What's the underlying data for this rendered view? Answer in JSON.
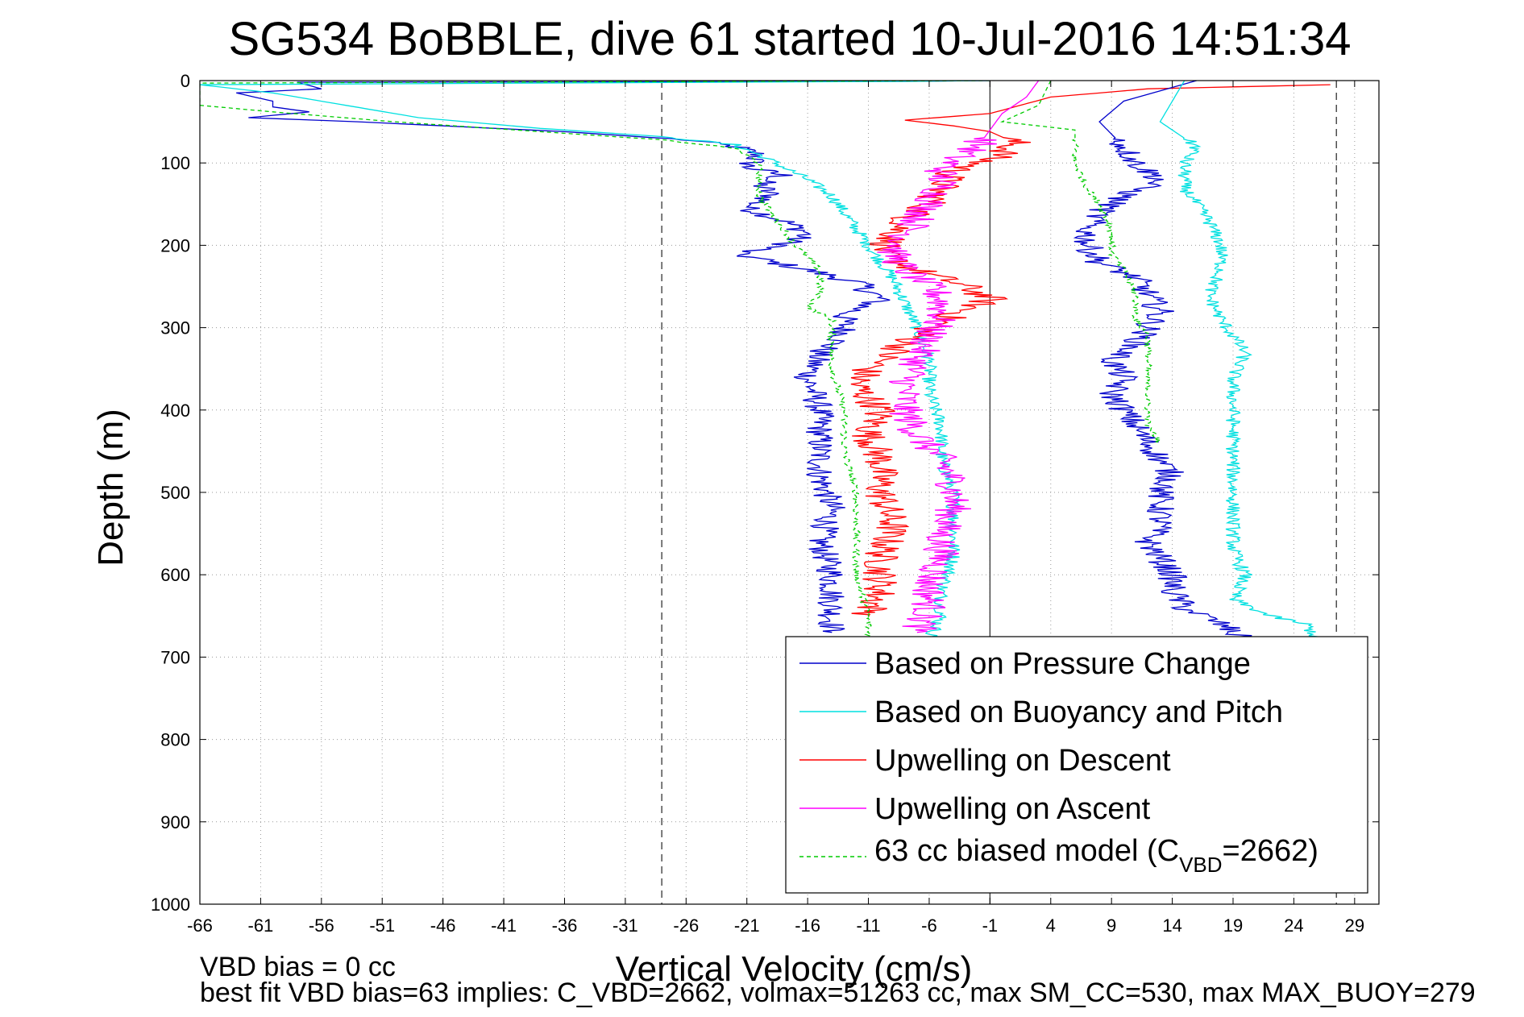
{
  "chart_data": {
    "type": "line",
    "title": "SG534 BoBBLE, dive 61 started 10-Jul-2016 14:51:34",
    "xlabel": "Vertical Velocity (cm/s)",
    "ylabel": "Depth (m)",
    "xlim": [
      -66,
      31
    ],
    "ylim": [
      0,
      1000
    ],
    "y_reversed": true,
    "grid": true,
    "legend_position": "bottom-right",
    "xticks": [
      "-66",
      "-61",
      "-56",
      "-51",
      "-46",
      "-41",
      "-36",
      "-31",
      "-26",
      "-21",
      "-16",
      "-11",
      "-6",
      "-1",
      "4",
      "9",
      "14",
      "19",
      "24",
      "29"
    ],
    "yticks": [
      "0",
      "100",
      "200",
      "300",
      "400",
      "500",
      "600",
      "700",
      "800",
      "900",
      "1000"
    ],
    "reference_lines": [
      {
        "x": -1,
        "style": "solid"
      },
      {
        "x": -28,
        "style": "dashed"
      },
      {
        "x": 27.5,
        "style": "dashed"
      }
    ],
    "series": [
      {
        "name": "Based on Pressure Change",
        "color": "#0000cc",
        "style": "solid",
        "noise": 1.2,
        "points": [
          [
            -1,
            0
          ],
          [
            -8,
            1
          ],
          [
            -58,
            2
          ],
          [
            -56,
            10
          ],
          [
            -63,
            15
          ],
          [
            -60,
            25
          ],
          [
            -60,
            32
          ],
          [
            -57,
            38
          ],
          [
            -62,
            45
          ],
          [
            -53,
            50
          ],
          [
            -36,
            62
          ],
          [
            -26,
            72
          ],
          [
            -22,
            80
          ],
          [
            -20,
            90
          ],
          [
            -21,
            105
          ],
          [
            -18,
            115
          ],
          [
            -20,
            125
          ],
          [
            -19,
            140
          ],
          [
            -21,
            155
          ],
          [
            -18,
            170
          ],
          [
            -16,
            185
          ],
          [
            -18,
            200
          ],
          [
            -22,
            210
          ],
          [
            -16,
            230
          ],
          [
            -12,
            245
          ],
          [
            -10,
            265
          ],
          [
            -13,
            285
          ],
          [
            -13,
            310
          ],
          [
            -15,
            330
          ],
          [
            -16,
            360
          ],
          [
            -15,
            400
          ],
          [
            -15,
            440
          ],
          [
            -15,
            480
          ],
          [
            -14,
            520
          ],
          [
            -15,
            560
          ],
          [
            -14,
            600
          ],
          [
            -14,
            640
          ],
          [
            -14,
            670
          ]
        ]
      },
      {
        "name": "Based on Buoyancy and Pitch",
        "color": "#00e0e0",
        "style": "solid",
        "noise": 0.6,
        "points": [
          [
            -1,
            0
          ],
          [
            -8,
            1
          ],
          [
            -66,
            5
          ],
          [
            -60,
            15
          ],
          [
            -54,
            30
          ],
          [
            -48,
            45
          ],
          [
            -38,
            58
          ],
          [
            -28,
            68
          ],
          [
            -22,
            78
          ],
          [
            -20,
            90
          ],
          [
            -18,
            105
          ],
          [
            -16,
            120
          ],
          [
            -14,
            140
          ],
          [
            -13,
            160
          ],
          [
            -12,
            180
          ],
          [
            -11,
            200
          ],
          [
            -10,
            220
          ],
          [
            -9,
            240
          ],
          [
            -8,
            270
          ],
          [
            -7,
            300
          ],
          [
            -6,
            340
          ],
          [
            -6,
            380
          ],
          [
            -5,
            420
          ],
          [
            -5,
            460
          ],
          [
            -4,
            500
          ],
          [
            -4,
            540
          ],
          [
            -4,
            580
          ],
          [
            -5,
            620
          ],
          [
            -5,
            650
          ],
          [
            -6,
            680
          ]
        ]
      },
      {
        "name": "Upwelling on Descent",
        "color": "#ff0000",
        "style": "solid",
        "noise": 1.5,
        "points": [
          [
            27,
            5
          ],
          [
            12,
            10
          ],
          [
            4,
            20
          ],
          [
            -1,
            40
          ],
          [
            -8,
            48
          ],
          [
            -4,
            55
          ],
          [
            -1,
            62
          ],
          [
            1,
            75
          ],
          [
            0,
            90
          ],
          [
            -4,
            110
          ],
          [
            -5,
            130
          ],
          [
            -6,
            150
          ],
          [
            -8,
            170
          ],
          [
            -9,
            190
          ],
          [
            -10,
            210
          ],
          [
            -7,
            230
          ],
          [
            -3,
            250
          ],
          [
            -1,
            265
          ],
          [
            -4,
            285
          ],
          [
            -7,
            310
          ],
          [
            -9,
            330
          ],
          [
            -11,
            350
          ],
          [
            -12,
            370
          ],
          [
            -10,
            400
          ],
          [
            -11,
            430
          ],
          [
            -10,
            460
          ],
          [
            -10,
            500
          ],
          [
            -9,
            540
          ],
          [
            -10,
            580
          ],
          [
            -10,
            620
          ],
          [
            -11,
            650
          ]
        ]
      },
      {
        "name": "Upwelling on Ascent",
        "color": "#ff00ff",
        "style": "solid",
        "noise": 1.5,
        "points": [
          [
            3,
            0
          ],
          [
            2,
            20
          ],
          [
            0,
            40
          ],
          [
            -1,
            60
          ],
          [
            -2,
            80
          ],
          [
            -4,
            95
          ],
          [
            -5,
            110
          ],
          [
            -5,
            130
          ],
          [
            -6,
            150
          ],
          [
            -7,
            170
          ],
          [
            -8,
            190
          ],
          [
            -9,
            210
          ],
          [
            -8,
            230
          ],
          [
            -6,
            250
          ],
          [
            -5,
            265
          ],
          [
            -5,
            285
          ],
          [
            -6,
            310
          ],
          [
            -7,
            340
          ],
          [
            -8,
            370
          ],
          [
            -8,
            400
          ],
          [
            -7,
            430
          ],
          [
            -5,
            460
          ],
          [
            -4,
            490
          ],
          [
            -4,
            520
          ],
          [
            -5,
            550
          ],
          [
            -5,
            580
          ],
          [
            -6,
            610
          ],
          [
            -6,
            640
          ],
          [
            -7,
            670
          ]
        ]
      },
      {
        "name": "63 cc biased model (C_VBD=2662)",
        "color": "#00cc00",
        "style": "dashed",
        "noise": 0.3,
        "points": [
          [
            -1,
            0
          ],
          [
            -66,
            3
          ],
          [
            -66,
            30
          ],
          [
            -60,
            38
          ],
          [
            -50,
            50
          ],
          [
            -38,
            62
          ],
          [
            -28,
            72
          ],
          [
            -22,
            82
          ],
          [
            -20,
            100
          ],
          [
            -20,
            120
          ],
          [
            -20,
            140
          ],
          [
            -19,
            160
          ],
          [
            -18,
            180
          ],
          [
            -17,
            200
          ],
          [
            -15,
            230
          ],
          [
            -15,
            260
          ],
          [
            -16,
            275
          ],
          [
            -14,
            290
          ],
          [
            -14,
            320
          ],
          [
            -14,
            350
          ],
          [
            -13,
            400
          ],
          [
            -13,
            450
          ],
          [
            -12,
            500
          ],
          [
            -12,
            550
          ],
          [
            -12,
            600
          ],
          [
            -11,
            650
          ],
          [
            -11,
            680
          ]
        ]
      },
      {
        "name": "",
        "color": "#0000cc",
        "style": "solid",
        "noise": 1.2,
        "points": [
          [
            16,
            0
          ],
          [
            10,
            25
          ],
          [
            8,
            50
          ],
          [
            10,
            80
          ],
          [
            11,
            100
          ],
          [
            13,
            120
          ],
          [
            10,
            140
          ],
          [
            8,
            160
          ],
          [
            7,
            180
          ],
          [
            7,
            200
          ],
          [
            8,
            220
          ],
          [
            11,
            240
          ],
          [
            12,
            260
          ],
          [
            13,
            280
          ],
          [
            12,
            300
          ],
          [
            11,
            320
          ],
          [
            9,
            340
          ],
          [
            10,
            360
          ],
          [
            9,
            380
          ],
          [
            10,
            400
          ],
          [
            11,
            420
          ],
          [
            12,
            440
          ],
          [
            13,
            460
          ],
          [
            14,
            480
          ],
          [
            13,
            500
          ],
          [
            13,
            520
          ],
          [
            13,
            540
          ],
          [
            12,
            560
          ],
          [
            13,
            580
          ],
          [
            14,
            600
          ],
          [
            14,
            620
          ],
          [
            15,
            640
          ],
          [
            18,
            660
          ],
          [
            20,
            680
          ]
        ]
      },
      {
        "name": "",
        "color": "#00e0e0",
        "style": "solid",
        "noise": 0.6,
        "points": [
          [
            15,
            0
          ],
          [
            14,
            25
          ],
          [
            13,
            50
          ],
          [
            16,
            80
          ],
          [
            15,
            100
          ],
          [
            15,
            130
          ],
          [
            16,
            150
          ],
          [
            17,
            170
          ],
          [
            18,
            200
          ],
          [
            18,
            230
          ],
          [
            17,
            260
          ],
          [
            18,
            290
          ],
          [
            19,
            310
          ],
          [
            20,
            330
          ],
          [
            19,
            360
          ],
          [
            19,
            390
          ],
          [
            19,
            420
          ],
          [
            19,
            450
          ],
          [
            19,
            480
          ],
          [
            19,
            510
          ],
          [
            19,
            540
          ],
          [
            19,
            570
          ],
          [
            20,
            600
          ],
          [
            19,
            630
          ],
          [
            22,
            650
          ],
          [
            25,
            660
          ],
          [
            26,
            680
          ]
        ]
      },
      {
        "name": "",
        "color": "#00cc00",
        "style": "dashed",
        "noise": 0.3,
        "points": [
          [
            4,
            0
          ],
          [
            3,
            30
          ],
          [
            0,
            50
          ],
          [
            6,
            60
          ],
          [
            6,
            80
          ],
          [
            6,
            100
          ],
          [
            7,
            130
          ],
          [
            8,
            150
          ],
          [
            9,
            180
          ],
          [
            9,
            210
          ],
          [
            10,
            230
          ],
          [
            11,
            260
          ],
          [
            11,
            290
          ],
          [
            12,
            310
          ],
          [
            12,
            340
          ],
          [
            12,
            370
          ],
          [
            12,
            400
          ],
          [
            12,
            420
          ],
          [
            13,
            440
          ]
        ]
      }
    ],
    "legend": [
      {
        "label": "Based on Pressure Change",
        "color": "#0000cc",
        "style": "solid"
      },
      {
        "label": "Based on Buoyancy and Pitch",
        "color": "#00e0e0",
        "style": "solid"
      },
      {
        "label": "Upwelling on Descent",
        "color": "#ff0000",
        "style": "solid"
      },
      {
        "label": "Upwelling on Ascent",
        "color": "#ff00ff",
        "style": "solid"
      },
      {
        "label_prefix": "63 cc biased model (C",
        "label_sub": "VBD",
        "label_suffix": "=2662)",
        "color": "#00cc00",
        "style": "dashed"
      }
    ]
  },
  "notes": {
    "line1": "VBD bias = 0 cc",
    "line2": "best fit VBD bias=63 implies: C_VBD=2662, volmax=51263 cc, max SM_CC=530, max MAX_BUOY=279"
  }
}
